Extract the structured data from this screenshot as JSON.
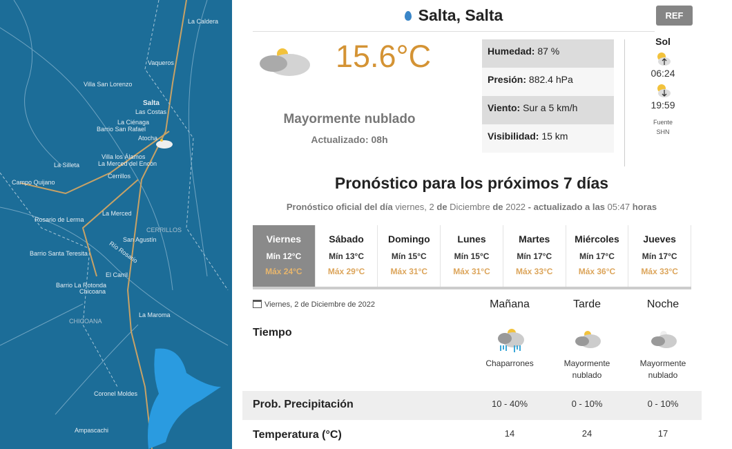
{
  "map": {
    "labels": [
      "La Caldera",
      "Vaqueros",
      "Villa San Lorenzo",
      "Salta",
      "Las Costas",
      "La Ciénaga",
      "Barrio San Rafael",
      "Atocha",
      "Villa los Álamos",
      "La Merced del Encón",
      "La Silleta",
      "Campo Quijano",
      "Cerrillos",
      "Rosario de Lerma",
      "La Merced",
      "CERRILLOS",
      "San Agustín",
      "Río Rosario",
      "Barrio Santa Teresita",
      "El Carril",
      "Barrio La Rotonda",
      "Chicoana",
      "CHICOANA",
      "La Maroma",
      "Coronel Moldes",
      "Ampascachi"
    ]
  },
  "header": {
    "location": "Salta, Salta",
    "ref_label": "REF"
  },
  "current": {
    "temperature": "15.6°C",
    "condition": "Mayormente nublado",
    "updated": "Actualizado: 08h",
    "icon": "partly-cloudy-icon",
    "stats": [
      {
        "label": "Humedad:",
        "value": "87 %"
      },
      {
        "label": "Presión:",
        "value": "882.4 hPa"
      },
      {
        "label": "Viento:",
        "value": "Sur a 5 km/h"
      },
      {
        "label": "Visibilidad:",
        "value": "15 km"
      }
    ]
  },
  "sun": {
    "title": "Sol",
    "sunrise": "06:24",
    "sunset": "19:59",
    "source_label": "Fuente",
    "source": "SHN"
  },
  "forecast": {
    "title": "Pronóstico para los próximos 7 días",
    "subtitle": {
      "a": "Pronóstico oficial del día",
      "b": "viernes, 2",
      "c": "de",
      "d": "Diciembre",
      "e": "de",
      "f": "2022",
      "g": "- actualizado a las",
      "h": "05:47",
      "i": "horas"
    },
    "days": [
      {
        "name": "Viernes",
        "min": "Mín 12°C",
        "max": "Máx 24°C",
        "active": true
      },
      {
        "name": "Sábado",
        "min": "Mín 13°C",
        "max": "Máx 29°C"
      },
      {
        "name": "Domingo",
        "min": "Mín 15°C",
        "max": "Máx 31°C"
      },
      {
        "name": "Lunes",
        "min": "Mín 15°C",
        "max": "Máx 31°C"
      },
      {
        "name": "Martes",
        "min": "Mín 17°C",
        "max": "Máx 33°C"
      },
      {
        "name": "Miércoles",
        "min": "Mín 17°C",
        "max": "Máx 36°C"
      },
      {
        "name": "Jueves",
        "min": "Mín 17°C",
        "max": "Máx 33°C"
      }
    ]
  },
  "detail": {
    "date": "Viernes, 2 de Diciembre de 2022",
    "periods": [
      "Mañana",
      "Tarde",
      "Noche"
    ],
    "rows": {
      "tiempo": "Tiempo",
      "precip": "Prob. Precipitación",
      "temp": "Temperatura (°C)"
    },
    "weather": [
      {
        "icon": "showers-icon",
        "l1": "Chaparrones",
        "l2": ""
      },
      {
        "icon": "partly-cloudy-icon",
        "l1": "Mayormente",
        "l2": "nublado"
      },
      {
        "icon": "cloudy-night-icon",
        "l1": "Mayormente",
        "l2": "nublado"
      }
    ],
    "precip": [
      "10 - 40%",
      "0 - 10%",
      "0 - 10%"
    ],
    "temps": [
      "14",
      "24",
      "17"
    ]
  },
  "colors": {
    "accent_temp": "#d49334",
    "max_temp": "#dca55b",
    "map_water": "#1c6d98",
    "active_day": "#8a8a8a"
  }
}
